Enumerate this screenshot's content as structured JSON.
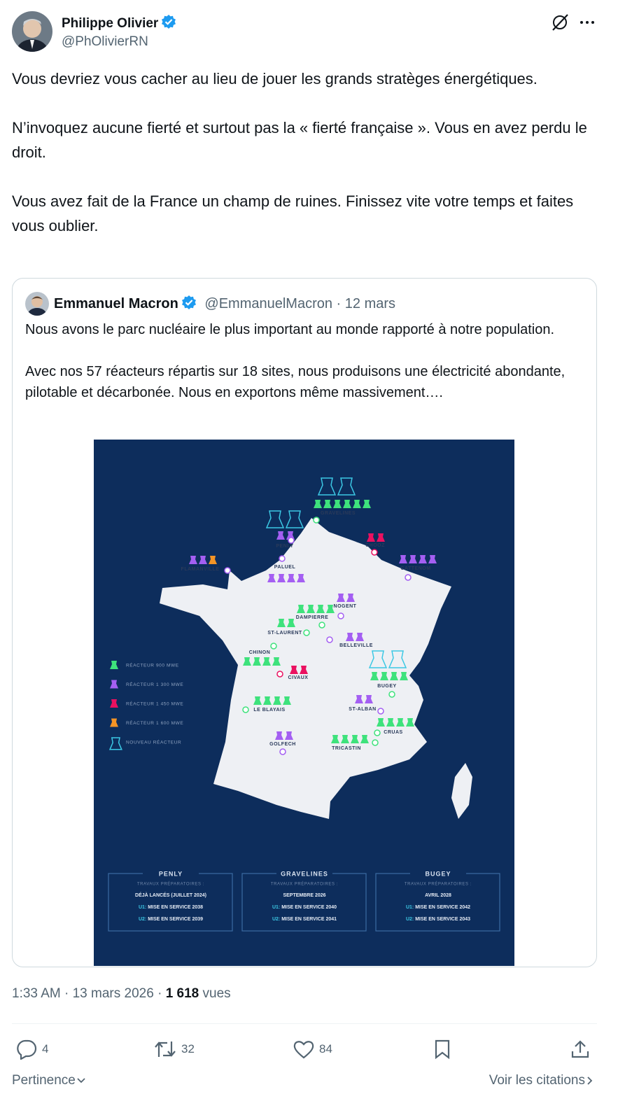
{
  "author": {
    "name": "Philippe Olivier",
    "handle": "@PhOlivierRN"
  },
  "tweet": {
    "paragraphs": [
      "Vous devriez vous cacher au lieu de jouer les grands stratèges énergétiques.",
      "N’invoquez aucune fierté et surtout pas la « fierté française ». Vous en avez perdu le droit.",
      "Vous avez fait de la France un champ de ruines. Finissez vite votre temps et faites vous oublier."
    ]
  },
  "separator": "·",
  "quote": {
    "author": {
      "name": "Emmanuel Macron",
      "handle": "@EmmanuelMacron"
    },
    "date": "12 mars",
    "paragraphs": [
      "Nous avons le parc nucléaire le plus important au monde rapporté à notre population.",
      "Avec nos 57 réacteurs répartis sur 18 sites, nous produisons une électricité abondante, pilotable et décarbonée. Nous en exportons même massivement…."
    ]
  },
  "map": {
    "legend": [
      {
        "label": "RÉACTEUR 900 MWE",
        "color": "#3ee27c"
      },
      {
        "label": "RÉACTEUR 1 300 MWE",
        "color": "#a45ff2"
      },
      {
        "label": "RÉACTEUR 1 450 MWE",
        "color": "#ea1160"
      },
      {
        "label": "RÉACTEUR 1 600 MWE",
        "color": "#f49426"
      },
      {
        "label": "NOUVEAU RÉACTEUR",
        "color": "#3cc8e4"
      }
    ],
    "sites": [
      {
        "label": "GRAVELINES",
        "units": [
          4,
          4,
          0,
          0,
          0,
          0,
          0,
          0
        ]
      },
      {
        "label": "PENLY",
        "units": [
          4,
          4,
          1,
          1
        ]
      },
      {
        "label": "CHOOZ",
        "units": [
          2,
          2
        ]
      },
      {
        "label": "FLAMANVILLE",
        "units": [
          1,
          1,
          3
        ]
      },
      {
        "label": "PALUEL",
        "units": [
          1,
          1,
          1,
          1
        ]
      },
      {
        "label": "CATTENOM",
        "units": [
          1,
          1,
          1,
          1
        ]
      },
      {
        "label": "NOGENT",
        "units": [
          1,
          1
        ]
      },
      {
        "label": "DAMPIERRE",
        "units": [
          0,
          0,
          0,
          0
        ]
      },
      {
        "label": "ST-LAURENT",
        "units": [
          0,
          0
        ]
      },
      {
        "label": "BELLEVILLE",
        "units": [
          1,
          1
        ]
      },
      {
        "label": "CHINON",
        "units": [
          0,
          0,
          0,
          0
        ]
      },
      {
        "label": "CIVAUX",
        "units": [
          2,
          2
        ]
      },
      {
        "label": "BUGEY",
        "units": [
          4,
          4,
          0,
          0,
          0,
          0
        ]
      },
      {
        "label": "ST-ALBAN",
        "units": [
          1,
          1
        ]
      },
      {
        "label": "LE BLAYAIS",
        "units": [
          0,
          0,
          0,
          0
        ]
      },
      {
        "label": "CRUAS",
        "units": [
          0,
          0,
          0,
          0
        ]
      },
      {
        "label": "GOLFECH",
        "units": [
          1,
          1
        ]
      },
      {
        "label": "TRICASTIN",
        "units": [
          0,
          0,
          0,
          0
        ]
      }
    ],
    "projects": [
      {
        "name": "PENLY",
        "subtitle": "TRAVAUX PRÉPARATOIRES :",
        "status": "DÉJÀ LANCÉS (JUILLET 2024)",
        "units": [
          {
            "unit": "U1:",
            "text": "MISE EN SERVICE 2038"
          },
          {
            "unit": "U2:",
            "text": "MISE EN SERVICE 2039"
          }
        ]
      },
      {
        "name": "GRAVELINES",
        "subtitle": "TRAVAUX PRÉPARATOIRES :",
        "status": "SEPTEMBRE 2026",
        "units": [
          {
            "unit": "U1:",
            "text": "MISE EN SERVICE 2040"
          },
          {
            "unit": "U2:",
            "text": "MISE EN SERVICE 2041"
          }
        ]
      },
      {
        "name": "BUGEY",
        "subtitle": "TRAVAUX PRÉPARATOIRES :",
        "status": "AVRIL 2028",
        "units": [
          {
            "unit": "U1:",
            "text": "MISE EN SERVICE 2042"
          },
          {
            "unit": "U2:",
            "text": "MISE EN SERVICE 2043"
          }
        ]
      }
    ]
  },
  "timestamp": {
    "time": "1:33 AM",
    "date": "13 mars 2026",
    "views": "1 618",
    "views_label": "vues"
  },
  "actions": {
    "replies": 4,
    "retweets": 32,
    "likes": 84
  },
  "footer": {
    "sort": "Pertinence",
    "quotes": "Voir les citations"
  }
}
